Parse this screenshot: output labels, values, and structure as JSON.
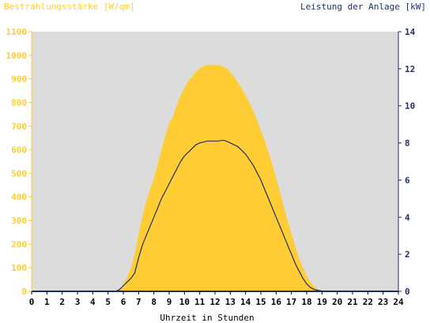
{
  "chart_data": {
    "type": "area",
    "title_left": "Bestrahlungsstärke [W/qm]",
    "title_right": "Leistung der Anlage [kW]",
    "xlabel": "Uhrzeit in Stunden",
    "x_ticks": [
      "0",
      "1",
      "2",
      "3",
      "4",
      "5",
      "6",
      "7",
      "8",
      "9",
      "10",
      "11",
      "12",
      "13",
      "14",
      "15",
      "16",
      "17",
      "18",
      "19",
      "20",
      "21",
      "22",
      "23",
      "24"
    ],
    "y_left_ticks": [
      "0",
      "100",
      "200",
      "300",
      "400",
      "500",
      "600",
      "700",
      "800",
      "900",
      "1000",
      "1100"
    ],
    "y_right_ticks": [
      "0",
      "2",
      "4",
      "6",
      "8",
      "10",
      "12",
      "14"
    ],
    "xlim": [
      0,
      24
    ],
    "ylim_left": [
      0,
      1100
    ],
    "ylim_right": [
      0,
      14
    ],
    "colors": {
      "plot_background": "#dcdcdc",
      "irradiance_fill": "#ffcc33",
      "power_line": "#1f2f6e",
      "left_axis_text": "#ffcc33",
      "right_axis_text": "#1f2f6e"
    },
    "series": [
      {
        "axis": "left",
        "style": "area",
        "x": [
          0,
          5.5,
          5.75,
          6,
          6.25,
          6.5,
          6.75,
          7,
          7.25,
          7.5,
          7.75,
          8,
          8.25,
          8.5,
          8.75,
          9,
          9.25,
          9.5,
          9.75,
          10,
          10.25,
          10.5,
          10.75,
          11,
          11.25,
          11.5,
          11.75,
          12,
          12.25,
          12.5,
          12.75,
          13,
          13.25,
          13.5,
          13.75,
          14,
          14.25,
          14.5,
          14.75,
          15,
          15.25,
          15.5,
          15.75,
          16,
          16.25,
          16.5,
          16.75,
          17,
          17.25,
          17.5,
          17.75,
          18,
          18.25,
          18.5,
          18.75,
          19,
          19.25,
          19.5,
          24
        ],
        "values": [
          0,
          0,
          10,
          30,
          60,
          100,
          160,
          240,
          320,
          380,
          430,
          480,
          540,
          600,
          660,
          710,
          740,
          790,
          830,
          860,
          890,
          910,
          930,
          945,
          955,
          958,
          958,
          958,
          958,
          955,
          945,
          930,
          910,
          885,
          860,
          830,
          800,
          765,
          725,
          680,
          640,
          590,
          540,
          480,
          420,
          360,
          300,
          245,
          190,
          140,
          100,
          65,
          40,
          20,
          8,
          2,
          0,
          0,
          0
        ]
      },
      {
        "axis": "right",
        "style": "line",
        "x": [
          0,
          5.5,
          5.75,
          6,
          6.25,
          6.5,
          6.75,
          7,
          7.25,
          7.5,
          7.75,
          8,
          8.25,
          8.5,
          8.75,
          9,
          9.25,
          9.5,
          9.75,
          10,
          10.25,
          10.5,
          10.75,
          11,
          11.25,
          11.5,
          11.75,
          12,
          12.25,
          12.5,
          12.75,
          13,
          13.25,
          13.5,
          13.75,
          14,
          14.25,
          14.5,
          14.75,
          15,
          15.25,
          15.5,
          15.75,
          16,
          16.25,
          16.5,
          16.75,
          17,
          17.25,
          17.5,
          17.75,
          18,
          18.25,
          18.5,
          18.75,
          19,
          19.25,
          19.5,
          24
        ],
        "values": [
          0,
          0,
          0.1,
          0.3,
          0.5,
          0.7,
          1.0,
          1.8,
          2.5,
          3.0,
          3.5,
          4.0,
          4.5,
          5.0,
          5.4,
          5.8,
          6.2,
          6.6,
          7.0,
          7.3,
          7.5,
          7.7,
          7.9,
          8.0,
          8.05,
          8.1,
          8.1,
          8.1,
          8.1,
          8.15,
          8.1,
          8.0,
          7.9,
          7.8,
          7.6,
          7.4,
          7.1,
          6.8,
          6.4,
          6.0,
          5.5,
          5.0,
          4.5,
          4.0,
          3.5,
          3.0,
          2.5,
          2.0,
          1.5,
          1.1,
          0.7,
          0.4,
          0.2,
          0.1,
          0.05,
          0.02,
          0,
          0,
          0
        ]
      }
    ]
  }
}
